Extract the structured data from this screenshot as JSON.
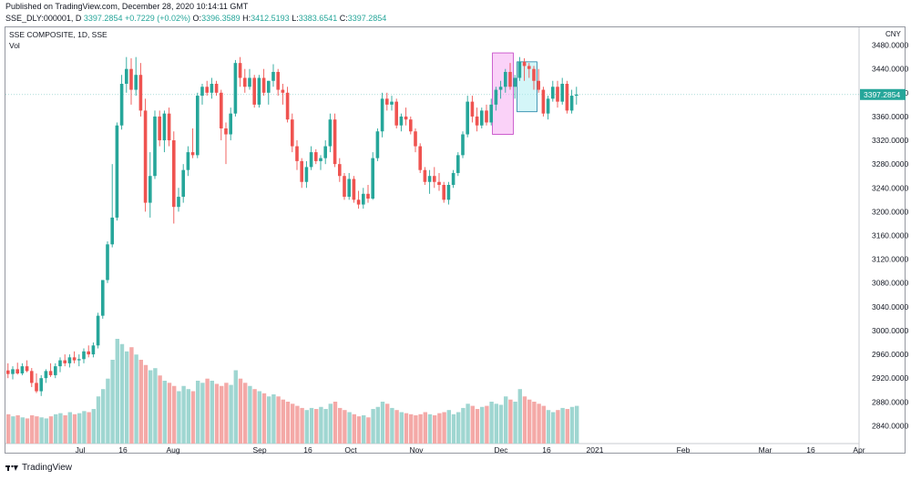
{
  "header": {
    "published": "Published on TradingView.com, December 28, 2020 10:14:11 GMT",
    "symbol": "SSE_DLY:000001, D",
    "last": "3397.2854",
    "change": "+0.7229 (+0.02%)",
    "o_label": "O:",
    "o_val": "3396.3589",
    "h_label": "H:",
    "h_val": "3412.5193",
    "l_label": "L:",
    "l_val": "3383.6541",
    "c_label": "C:",
    "c_val": "3397.2854"
  },
  "legend": {
    "main": "SSE COMPOSITE, 1D, SSE",
    "vol": "Vol"
  },
  "footer": {
    "brand": "TradingView"
  },
  "colors": {
    "up": "#26a69a",
    "down": "#ef5350",
    "vol_up": "#9fd6d1",
    "vol_down": "#f4a9a7",
    "box_pink": "#f59bf0",
    "box_cyan": "#a9eef2"
  },
  "chart_data": {
    "type": "candlestick",
    "title": "SSE COMPOSITE, 1D, SSE",
    "currency": "CNY",
    "last_price_label": "3397.2854",
    "ylim": [
      2810,
      3510
    ],
    "yticks": [
      "3480.0000",
      "3440.0000",
      "3400.0000",
      "3360.0000",
      "3320.0000",
      "3280.0000",
      "3240.0000",
      "3200.0000",
      "3160.0000",
      "3120.0000",
      "3080.0000",
      "3040.0000",
      "3000.0000",
      "2960.0000",
      "2920.0000",
      "2880.0000",
      "2840.0000"
    ],
    "xticks": [
      "Jul",
      "16",
      "Aug",
      "Sep",
      "16",
      "Oct",
      "Nov",
      "Dec",
      "16",
      "2021",
      "Feb",
      "Mar",
      "16",
      "Apr"
    ],
    "series": [
      {
        "o": 2933,
        "h": 2945,
        "l": 2920,
        "c": 2927,
        "v": 0.28
      },
      {
        "o": 2927,
        "h": 2940,
        "l": 2918,
        "c": 2935,
        "v": 0.26
      },
      {
        "o": 2935,
        "h": 2946,
        "l": 2926,
        "c": 2928,
        "v": 0.27
      },
      {
        "o": 2928,
        "h": 2945,
        "l": 2925,
        "c": 2940,
        "v": 0.25
      },
      {
        "o": 2940,
        "h": 2950,
        "l": 2930,
        "c": 2932,
        "v": 0.24
      },
      {
        "o": 2932,
        "h": 2937,
        "l": 2905,
        "c": 2912,
        "v": 0.27
      },
      {
        "o": 2912,
        "h": 2928,
        "l": 2895,
        "c": 2898,
        "v": 0.26
      },
      {
        "o": 2898,
        "h": 2925,
        "l": 2890,
        "c": 2920,
        "v": 0.25
      },
      {
        "o": 2920,
        "h": 2935,
        "l": 2912,
        "c": 2932,
        "v": 0.24
      },
      {
        "o": 2932,
        "h": 2945,
        "l": 2922,
        "c": 2925,
        "v": 0.26
      },
      {
        "o": 2925,
        "h": 2945,
        "l": 2920,
        "c": 2940,
        "v": 0.28
      },
      {
        "o": 2940,
        "h": 2955,
        "l": 2930,
        "c": 2950,
        "v": 0.29
      },
      {
        "o": 2950,
        "h": 2960,
        "l": 2940,
        "c": 2945,
        "v": 0.27
      },
      {
        "o": 2945,
        "h": 2960,
        "l": 2938,
        "c": 2955,
        "v": 0.3
      },
      {
        "o": 2955,
        "h": 2965,
        "l": 2945,
        "c": 2950,
        "v": 0.28
      },
      {
        "o": 2950,
        "h": 2960,
        "l": 2940,
        "c": 2952,
        "v": 0.29
      },
      {
        "o": 2952,
        "h": 2970,
        "l": 2945,
        "c": 2965,
        "v": 0.31
      },
      {
        "o": 2965,
        "h": 2975,
        "l": 2955,
        "c": 2960,
        "v": 0.3
      },
      {
        "o": 2960,
        "h": 2980,
        "l": 2955,
        "c": 2975,
        "v": 0.33
      },
      {
        "o": 2975,
        "h": 3030,
        "l": 2970,
        "c": 3025,
        "v": 0.45
      },
      {
        "o": 3025,
        "h": 3085,
        "l": 3020,
        "c": 3085,
        "v": 0.52
      },
      {
        "o": 3085,
        "h": 3150,
        "l": 3080,
        "c": 3145,
        "v": 0.62
      },
      {
        "o": 3145,
        "h": 3280,
        "l": 3140,
        "c": 3190,
        "v": 0.8
      },
      {
        "o": 3190,
        "h": 3350,
        "l": 3185,
        "c": 3345,
        "v": 1.0
      },
      {
        "o": 3345,
        "h": 3430,
        "l": 3338,
        "c": 3415,
        "v": 0.95
      },
      {
        "o": 3415,
        "h": 3460,
        "l": 3400,
        "c": 3440,
        "v": 0.88
      },
      {
        "o": 3440,
        "h": 3458,
        "l": 3380,
        "c": 3405,
        "v": 0.92
      },
      {
        "o": 3405,
        "h": 3460,
        "l": 3395,
        "c": 3430,
        "v": 0.85
      },
      {
        "o": 3430,
        "h": 3450,
        "l": 3360,
        "c": 3370,
        "v": 0.8
      },
      {
        "o": 3370,
        "h": 3390,
        "l": 3200,
        "c": 3215,
        "v": 0.75
      },
      {
        "o": 3215,
        "h": 3300,
        "l": 3190,
        "c": 3260,
        "v": 0.7
      },
      {
        "o": 3260,
        "h": 3370,
        "l": 3255,
        "c": 3360,
        "v": 0.72
      },
      {
        "o": 3360,
        "h": 3370,
        "l": 3310,
        "c": 3320,
        "v": 0.65
      },
      {
        "o": 3320,
        "h": 3370,
        "l": 3300,
        "c": 3365,
        "v": 0.6
      },
      {
        "o": 3365,
        "h": 3375,
        "l": 3310,
        "c": 3320,
        "v": 0.58
      },
      {
        "o": 3320,
        "h": 3335,
        "l": 3180,
        "c": 3208,
        "v": 0.55
      },
      {
        "o": 3208,
        "h": 3240,
        "l": 3200,
        "c": 3225,
        "v": 0.5
      },
      {
        "o": 3225,
        "h": 3280,
        "l": 3215,
        "c": 3270,
        "v": 0.55
      },
      {
        "o": 3270,
        "h": 3310,
        "l": 3260,
        "c": 3300,
        "v": 0.52
      },
      {
        "o": 3300,
        "h": 3340,
        "l": 3290,
        "c": 3295,
        "v": 0.5
      },
      {
        "o": 3295,
        "h": 3400,
        "l": 3290,
        "c": 3395,
        "v": 0.6
      },
      {
        "o": 3395,
        "h": 3415,
        "l": 3380,
        "c": 3410,
        "v": 0.58
      },
      {
        "o": 3410,
        "h": 3420,
        "l": 3395,
        "c": 3400,
        "v": 0.62
      },
      {
        "o": 3400,
        "h": 3425,
        "l": 3390,
        "c": 3415,
        "v": 0.6
      },
      {
        "o": 3415,
        "h": 3420,
        "l": 3395,
        "c": 3400,
        "v": 0.57
      },
      {
        "o": 3400,
        "h": 3405,
        "l": 3320,
        "c": 3340,
        "v": 0.55
      },
      {
        "o": 3340,
        "h": 3350,
        "l": 3280,
        "c": 3330,
        "v": 0.58
      },
      {
        "o": 3330,
        "h": 3375,
        "l": 3320,
        "c": 3365,
        "v": 0.56
      },
      {
        "o": 3365,
        "h": 3455,
        "l": 3360,
        "c": 3450,
        "v": 0.7
      },
      {
        "o": 3450,
        "h": 3460,
        "l": 3410,
        "c": 3425,
        "v": 0.62
      },
      {
        "o": 3425,
        "h": 3440,
        "l": 3400,
        "c": 3410,
        "v": 0.58
      },
      {
        "o": 3410,
        "h": 3440,
        "l": 3405,
        "c": 3425,
        "v": 0.55
      },
      {
        "o": 3425,
        "h": 3430,
        "l": 3375,
        "c": 3380,
        "v": 0.52
      },
      {
        "o": 3380,
        "h": 3430,
        "l": 3375,
        "c": 3425,
        "v": 0.5
      },
      {
        "o": 3425,
        "h": 3440,
        "l": 3395,
        "c": 3400,
        "v": 0.48
      },
      {
        "o": 3400,
        "h": 3420,
        "l": 3380,
        "c": 3420,
        "v": 0.45
      },
      {
        "o": 3420,
        "h": 3448,
        "l": 3410,
        "c": 3435,
        "v": 0.47
      },
      {
        "o": 3435,
        "h": 3440,
        "l": 3395,
        "c": 3405,
        "v": 0.45
      },
      {
        "o": 3405,
        "h": 3415,
        "l": 3380,
        "c": 3400,
        "v": 0.42
      },
      {
        "o": 3400,
        "h": 3410,
        "l": 3350,
        "c": 3355,
        "v": 0.4
      },
      {
        "o": 3355,
        "h": 3365,
        "l": 3300,
        "c": 3310,
        "v": 0.38
      },
      {
        "o": 3310,
        "h": 3320,
        "l": 3270,
        "c": 3285,
        "v": 0.36
      },
      {
        "o": 3285,
        "h": 3290,
        "l": 3240,
        "c": 3250,
        "v": 0.34
      },
      {
        "o": 3250,
        "h": 3285,
        "l": 3240,
        "c": 3275,
        "v": 0.32
      },
      {
        "o": 3275,
        "h": 3310,
        "l": 3270,
        "c": 3300,
        "v": 0.34
      },
      {
        "o": 3300,
        "h": 3305,
        "l": 3280,
        "c": 3285,
        "v": 0.33
      },
      {
        "o": 3285,
        "h": 3295,
        "l": 3270,
        "c": 3290,
        "v": 0.35
      },
      {
        "o": 3290,
        "h": 3320,
        "l": 3280,
        "c": 3310,
        "v": 0.33
      },
      {
        "o": 3310,
        "h": 3365,
        "l": 3300,
        "c": 3355,
        "v": 0.38
      },
      {
        "o": 3355,
        "h": 3365,
        "l": 3275,
        "c": 3280,
        "v": 0.4
      },
      {
        "o": 3280,
        "h": 3290,
        "l": 3250,
        "c": 3260,
        "v": 0.34
      },
      {
        "o": 3260,
        "h": 3265,
        "l": 3220,
        "c": 3225,
        "v": 0.32
      },
      {
        "o": 3225,
        "h": 3265,
        "l": 3220,
        "c": 3255,
        "v": 0.3
      },
      {
        "o": 3255,
        "h": 3260,
        "l": 3215,
        "c": 3220,
        "v": 0.28
      },
      {
        "o": 3220,
        "h": 3235,
        "l": 3205,
        "c": 3212,
        "v": 0.26
      },
      {
        "o": 3212,
        "h": 3240,
        "l": 3205,
        "c": 3230,
        "v": 0.27
      },
      {
        "o": 3230,
        "h": 3245,
        "l": 3215,
        "c": 3222,
        "v": 0.25
      },
      {
        "o": 3222,
        "h": 3300,
        "l": 3220,
        "c": 3290,
        "v": 0.33
      },
      {
        "o": 3290,
        "h": 3340,
        "l": 3285,
        "c": 3335,
        "v": 0.35
      },
      {
        "o": 3335,
        "h": 3400,
        "l": 3325,
        "c": 3390,
        "v": 0.4
      },
      {
        "o": 3390,
        "h": 3400,
        "l": 3370,
        "c": 3380,
        "v": 0.38
      },
      {
        "o": 3380,
        "h": 3395,
        "l": 3370,
        "c": 3385,
        "v": 0.34
      },
      {
        "o": 3385,
        "h": 3390,
        "l": 3340,
        "c": 3345,
        "v": 0.32
      },
      {
        "o": 3345,
        "h": 3365,
        "l": 3335,
        "c": 3360,
        "v": 0.3
      },
      {
        "o": 3360,
        "h": 3375,
        "l": 3345,
        "c": 3355,
        "v": 0.29
      },
      {
        "o": 3355,
        "h": 3360,
        "l": 3330,
        "c": 3335,
        "v": 0.28
      },
      {
        "o": 3335,
        "h": 3340,
        "l": 3300,
        "c": 3310,
        "v": 0.27
      },
      {
        "o": 3310,
        "h": 3315,
        "l": 3265,
        "c": 3270,
        "v": 0.28
      },
      {
        "o": 3270,
        "h": 3275,
        "l": 3245,
        "c": 3250,
        "v": 0.3
      },
      {
        "o": 3250,
        "h": 3270,
        "l": 3230,
        "c": 3260,
        "v": 0.28
      },
      {
        "o": 3260,
        "h": 3275,
        "l": 3240,
        "c": 3250,
        "v": 0.27
      },
      {
        "o": 3250,
        "h": 3265,
        "l": 3235,
        "c": 3245,
        "v": 0.29
      },
      {
        "o": 3245,
        "h": 3250,
        "l": 3215,
        "c": 3220,
        "v": 0.3
      },
      {
        "o": 3220,
        "h": 3250,
        "l": 3212,
        "c": 3245,
        "v": 0.32
      },
      {
        "o": 3245,
        "h": 3270,
        "l": 3240,
        "c": 3265,
        "v": 0.28
      },
      {
        "o": 3265,
        "h": 3300,
        "l": 3260,
        "c": 3295,
        "v": 0.3
      },
      {
        "o": 3295,
        "h": 3335,
        "l": 3290,
        "c": 3330,
        "v": 0.34
      },
      {
        "o": 3330,
        "h": 3395,
        "l": 3325,
        "c": 3385,
        "v": 0.38
      },
      {
        "o": 3385,
        "h": 3395,
        "l": 3350,
        "c": 3360,
        "v": 0.36
      },
      {
        "o": 3360,
        "h": 3375,
        "l": 3335,
        "c": 3345,
        "v": 0.33
      },
      {
        "o": 3345,
        "h": 3375,
        "l": 3340,
        "c": 3370,
        "v": 0.35
      },
      {
        "o": 3370,
        "h": 3380,
        "l": 3345,
        "c": 3350,
        "v": 0.36
      },
      {
        "o": 3350,
        "h": 3390,
        "l": 3345,
        "c": 3380,
        "v": 0.4
      },
      {
        "o": 3380,
        "h": 3410,
        "l": 3370,
        "c": 3405,
        "v": 0.38
      },
      {
        "o": 3405,
        "h": 3420,
        "l": 3390,
        "c": 3410,
        "v": 0.37
      },
      {
        "o": 3410,
        "h": 3440,
        "l": 3400,
        "c": 3435,
        "v": 0.45
      },
      {
        "o": 3435,
        "h": 3450,
        "l": 3405,
        "c": 3410,
        "v": 0.42
      },
      {
        "o": 3410,
        "h": 3430,
        "l": 3390,
        "c": 3425,
        "v": 0.4
      },
      {
        "o": 3425,
        "h": 3460,
        "l": 3420,
        "c": 3452,
        "v": 0.52
      },
      {
        "o": 3452,
        "h": 3458,
        "l": 3420,
        "c": 3445,
        "v": 0.45
      },
      {
        "o": 3445,
        "h": 3450,
        "l": 3425,
        "c": 3440,
        "v": 0.42
      },
      {
        "o": 3440,
        "h": 3445,
        "l": 3405,
        "c": 3420,
        "v": 0.4
      },
      {
        "o": 3420,
        "h": 3440,
        "l": 3400,
        "c": 3405,
        "v": 0.38
      },
      {
        "o": 3405,
        "h": 3410,
        "l": 3360,
        "c": 3365,
        "v": 0.36
      },
      {
        "o": 3365,
        "h": 3395,
        "l": 3355,
        "c": 3390,
        "v": 0.32
      },
      {
        "o": 3390,
        "h": 3420,
        "l": 3385,
        "c": 3410,
        "v": 0.3
      },
      {
        "o": 3410,
        "h": 3420,
        "l": 3375,
        "c": 3385,
        "v": 0.32
      },
      {
        "o": 3385,
        "h": 3425,
        "l": 3380,
        "c": 3415,
        "v": 0.34
      },
      {
        "o": 3415,
        "h": 3420,
        "l": 3365,
        "c": 3370,
        "v": 0.33
      },
      {
        "o": 3370,
        "h": 3405,
        "l": 3365,
        "c": 3395,
        "v": 0.35
      },
      {
        "o": 3395,
        "h": 3410,
        "l": 3380,
        "c": 3397,
        "v": 0.36
      }
    ],
    "annotations": [
      "pink highlight box (late Nov–early Dec)",
      "cyan highlight box (early Dec)"
    ]
  }
}
